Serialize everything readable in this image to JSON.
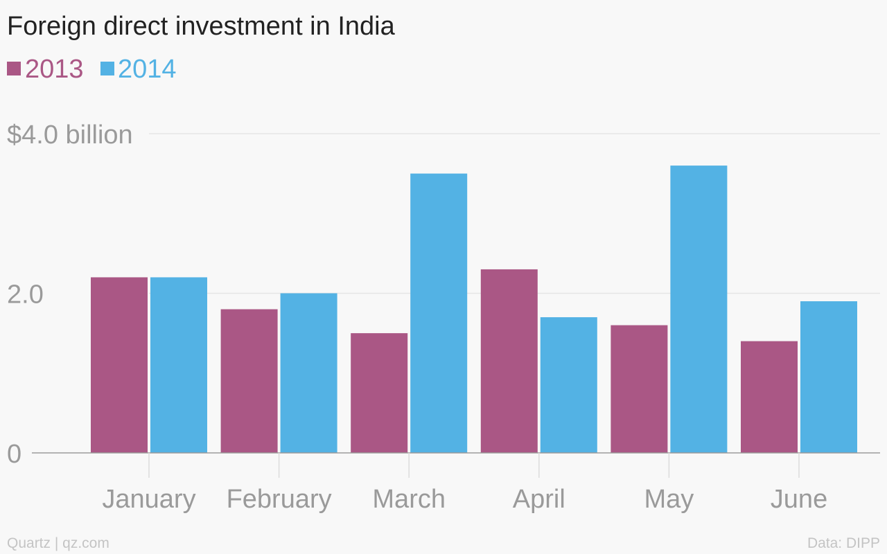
{
  "colors": {
    "series_2013": "#aa5785",
    "series_2014": "#53b2e4",
    "background": "#f8f8f8",
    "axis_text": "#9a9a9a",
    "title_text": "#222222"
  },
  "footer": {
    "source_left": "Quartz | qz.com",
    "source_right": "Data: DIPP"
  },
  "y_tick_labels": [
    "0",
    "2.0",
    "$4.0 billion"
  ],
  "chart_data": {
    "type": "bar",
    "title": "Foreign direct investment in India",
    "categories": [
      "January",
      "February",
      "March",
      "April",
      "May",
      "June"
    ],
    "series": [
      {
        "name": "2013",
        "values": [
          2.2,
          1.8,
          1.5,
          2.3,
          1.6,
          1.4
        ]
      },
      {
        "name": "2014",
        "values": [
          2.2,
          2.0,
          3.5,
          1.7,
          3.6,
          1.9
        ]
      }
    ],
    "yticks": [
      0,
      2.0,
      4.0
    ],
    "ylim": [
      0,
      4.0
    ],
    "grid": true,
    "legend_position": "top-left"
  }
}
